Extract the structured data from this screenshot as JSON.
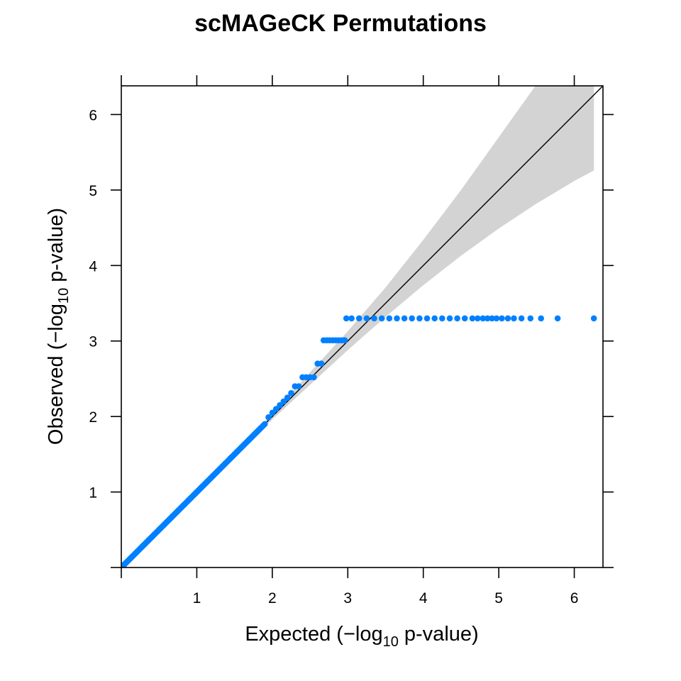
{
  "chart_data": {
    "type": "scatter",
    "title": "scMAGeCK Permutations",
    "xlabel_parts": [
      "Expected (",
      "−",
      "log",
      "10",
      " p-value)"
    ],
    "ylabel_parts": [
      "Observed (",
      "−",
      "log",
      "10",
      " p-value)"
    ],
    "xlim": [
      0,
      6.38
    ],
    "ylim": [
      0,
      6.38
    ],
    "xticks": [
      1,
      2,
      3,
      4,
      5,
      6
    ],
    "yticks": [
      1,
      2,
      3,
      4,
      5,
      6
    ],
    "grid": false,
    "legend": "none",
    "colors": {
      "points": "#0080ff",
      "band": "#d3d3d3",
      "line": "#000000"
    },
    "reference_line": {
      "slope": 1,
      "intercept": 0
    },
    "confidence_band": {
      "x": [
        0,
        1,
        2,
        3,
        3.5,
        4,
        4.5,
        5,
        5.5,
        6,
        6.26
      ],
      "lower": [
        0,
        0.99,
        1.96,
        2.88,
        3.32,
        3.74,
        4.13,
        4.49,
        4.82,
        5.12,
        5.26
      ],
      "upper": [
        0,
        1.01,
        2.04,
        3.13,
        3.71,
        4.34,
        5.0,
        5.7,
        6.4,
        7.1,
        7.5
      ]
    },
    "series": [
      {
        "name": "",
        "segments": [
          {
            "x_from": 0.02,
            "x_to": 1.9,
            "y": "diagonal",
            "step": 0.02
          }
        ],
        "points": [
          [
            1.95,
            1.99
          ],
          [
            2.0,
            2.05
          ],
          [
            2.05,
            2.1
          ],
          [
            2.1,
            2.15
          ],
          [
            2.15,
            2.2
          ],
          [
            2.2,
            2.25
          ],
          [
            2.25,
            2.31
          ],
          [
            2.3,
            2.4
          ],
          [
            2.35,
            2.4
          ],
          [
            2.4,
            2.52
          ],
          [
            2.45,
            2.52
          ],
          [
            2.5,
            2.52
          ],
          [
            2.55,
            2.52
          ],
          [
            2.6,
            2.7
          ],
          [
            2.65,
            2.7
          ],
          [
            2.68,
            3.01
          ],
          [
            2.72,
            3.01
          ],
          [
            2.76,
            3.01
          ],
          [
            2.8,
            3.01
          ],
          [
            2.84,
            3.01
          ],
          [
            2.88,
            3.01
          ],
          [
            2.92,
            3.01
          ],
          [
            2.96,
            3.01
          ],
          [
            2.98,
            3.3
          ],
          [
            3.05,
            3.3
          ],
          [
            3.15,
            3.3
          ],
          [
            3.25,
            3.3
          ],
          [
            3.35,
            3.3
          ],
          [
            3.45,
            3.3
          ],
          [
            3.55,
            3.3
          ],
          [
            3.65,
            3.3
          ],
          [
            3.75,
            3.3
          ],
          [
            3.85,
            3.3
          ],
          [
            3.95,
            3.3
          ],
          [
            4.05,
            3.3
          ],
          [
            4.15,
            3.3
          ],
          [
            4.25,
            3.3
          ],
          [
            4.35,
            3.3
          ],
          [
            4.45,
            3.3
          ],
          [
            4.55,
            3.3
          ],
          [
            4.65,
            3.3
          ],
          [
            4.72,
            3.3
          ],
          [
            4.79,
            3.3
          ],
          [
            4.85,
            3.3
          ],
          [
            4.91,
            3.3
          ],
          [
            4.97,
            3.3
          ],
          [
            5.04,
            3.3
          ],
          [
            5.12,
            3.3
          ],
          [
            5.2,
            3.3
          ],
          [
            5.3,
            3.3
          ],
          [
            5.42,
            3.3
          ],
          [
            5.56,
            3.3
          ],
          [
            5.78,
            3.3
          ],
          [
            6.26,
            3.3
          ]
        ]
      }
    ]
  }
}
